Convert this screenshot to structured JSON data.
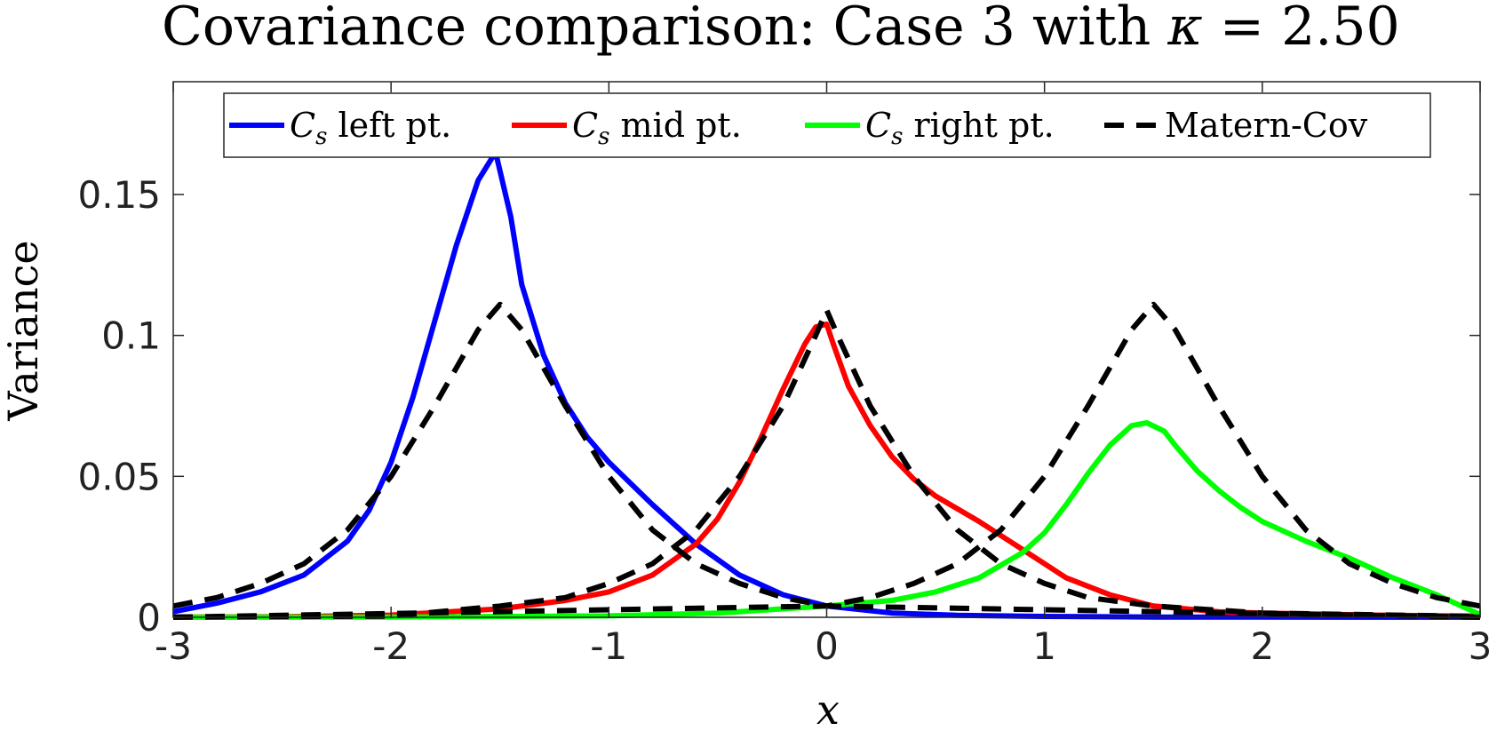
{
  "chart_data": {
    "type": "line",
    "title": "Covariance comparison: Case 3 with κ = 2.50",
    "title_parts": {
      "lead": "Covariance comparison: Case 3 with ",
      "symbol": "κ",
      "tail": " = 2.50"
    },
    "xlabel": "x",
    "ylabel": "Variance",
    "xlim": [
      -3,
      3
    ],
    "ylim": [
      0,
      0.19
    ],
    "xticks": [
      -3,
      -2,
      -1,
      0,
      1,
      2,
      3
    ],
    "xtick_labels": [
      "-3",
      "-2",
      "-1",
      "0",
      "1",
      "2",
      "3"
    ],
    "yticks": [
      0,
      0.05,
      0.1,
      0.15
    ],
    "ytick_labels": [
      "0",
      "0.05",
      "0.1",
      "0.15"
    ],
    "grid": false,
    "legend_position": "top",
    "legend": [
      {
        "symbol": "C",
        "subscript": "s",
        "text": " left pt.",
        "color": "#0000ff",
        "style": "solid"
      },
      {
        "symbol": "C",
        "subscript": "s",
        "text": " mid pt.",
        "color": "#ff0000",
        "style": "solid"
      },
      {
        "symbol": "C",
        "subscript": "s",
        "text": " right pt.",
        "color": "#00ff00",
        "style": "solid"
      },
      {
        "symbol": "",
        "subscript": "",
        "text": "Matern-Cov",
        "color": "#000000",
        "style": "dashed"
      }
    ],
    "series": [
      {
        "name": "Cs left pt.",
        "color": "#0000ff",
        "style": "solid",
        "points": [
          [
            -3,
            0.002
          ],
          [
            -2.8,
            0.005
          ],
          [
            -2.6,
            0.009
          ],
          [
            -2.4,
            0.015
          ],
          [
            -2.2,
            0.027
          ],
          [
            -2.1,
            0.038
          ],
          [
            -2.0,
            0.055
          ],
          [
            -1.9,
            0.078
          ],
          [
            -1.8,
            0.105
          ],
          [
            -1.7,
            0.132
          ],
          [
            -1.6,
            0.155
          ],
          [
            -1.52,
            0.165
          ],
          [
            -1.45,
            0.142
          ],
          [
            -1.4,
            0.118
          ],
          [
            -1.3,
            0.093
          ],
          [
            -1.2,
            0.076
          ],
          [
            -1.1,
            0.064
          ],
          [
            -1.0,
            0.055
          ],
          [
            -0.8,
            0.04
          ],
          [
            -0.6,
            0.026
          ],
          [
            -0.4,
            0.015
          ],
          [
            -0.2,
            0.008
          ],
          [
            0,
            0.004
          ],
          [
            0.3,
            0.0015
          ],
          [
            0.6,
            0.0007
          ],
          [
            1.0,
            0.0003
          ],
          [
            1.5,
            0.0001
          ],
          [
            2.0,
            5e-05
          ],
          [
            3,
            2e-05
          ]
        ]
      },
      {
        "name": "Cs mid pt.",
        "color": "#ff0000",
        "style": "solid",
        "points": [
          [
            -3,
            5e-05
          ],
          [
            -2.5,
            0.0002
          ],
          [
            -2.0,
            0.0008
          ],
          [
            -1.5,
            0.003
          ],
          [
            -1.2,
            0.006
          ],
          [
            -1.0,
            0.009
          ],
          [
            -0.8,
            0.015
          ],
          [
            -0.6,
            0.026
          ],
          [
            -0.5,
            0.035
          ],
          [
            -0.4,
            0.048
          ],
          [
            -0.3,
            0.064
          ],
          [
            -0.2,
            0.081
          ],
          [
            -0.1,
            0.097
          ],
          [
            -0.05,
            0.103
          ],
          [
            0,
            0.104
          ],
          [
            0.03,
            0.097
          ],
          [
            0.1,
            0.082
          ],
          [
            0.2,
            0.068
          ],
          [
            0.3,
            0.057
          ],
          [
            0.4,
            0.049
          ],
          [
            0.5,
            0.043
          ],
          [
            0.7,
            0.034
          ],
          [
            0.9,
            0.024
          ],
          [
            1.1,
            0.014
          ],
          [
            1.3,
            0.008
          ],
          [
            1.5,
            0.004
          ],
          [
            1.8,
            0.002
          ],
          [
            2.0,
            0.0015
          ],
          [
            2.5,
            0.0008
          ],
          [
            3,
            0.0004
          ]
        ]
      },
      {
        "name": "Cs right pt.",
        "color": "#00ff00",
        "style": "solid",
        "points": [
          [
            -3,
            2e-05
          ],
          [
            -2.0,
            0.0001
          ],
          [
            -1.0,
            0.0005
          ],
          [
            -0.5,
            0.0015
          ],
          [
            0,
            0.004
          ],
          [
            0.3,
            0.006
          ],
          [
            0.5,
            0.009
          ],
          [
            0.7,
            0.014
          ],
          [
            0.9,
            0.023
          ],
          [
            1.0,
            0.03
          ],
          [
            1.1,
            0.04
          ],
          [
            1.2,
            0.051
          ],
          [
            1.3,
            0.061
          ],
          [
            1.4,
            0.068
          ],
          [
            1.47,
            0.069
          ],
          [
            1.55,
            0.066
          ],
          [
            1.6,
            0.061
          ],
          [
            1.7,
            0.052
          ],
          [
            1.8,
            0.045
          ],
          [
            1.9,
            0.039
          ],
          [
            2.0,
            0.034
          ],
          [
            2.2,
            0.027
          ],
          [
            2.4,
            0.021
          ],
          [
            2.6,
            0.014
          ],
          [
            2.8,
            0.008
          ],
          [
            3,
            0.001
          ]
        ]
      },
      {
        "name": "Matern-Cov",
        "color": "#000000",
        "style": "dashed",
        "points": [
          [
            -3,
            0.004
          ],
          [
            -2.8,
            0.007
          ],
          [
            -2.6,
            0.012
          ],
          [
            -2.4,
            0.019
          ],
          [
            -2.2,
            0.031
          ],
          [
            -2.0,
            0.05
          ],
          [
            -1.8,
            0.075
          ],
          [
            -1.6,
            0.102
          ],
          [
            -1.5,
            0.111
          ],
          [
            -1.4,
            0.102
          ],
          [
            -1.2,
            0.075
          ],
          [
            -1.0,
            0.05
          ],
          [
            -0.8,
            0.031
          ],
          [
            -0.6,
            0.019
          ],
          [
            -0.4,
            0.012
          ],
          [
            -0.2,
            0.007
          ],
          [
            0,
            0.004
          ],
          [
            3,
            2e-05
          ]
        ]
      },
      {
        "name": "Matern-Cov",
        "color": "#000000",
        "style": "dashed",
        "points": [
          [
            -3,
            5e-05
          ],
          [
            -2.0,
            0.0004
          ],
          [
            -1.5,
            0.004
          ],
          [
            -1.2,
            0.007
          ],
          [
            -1.0,
            0.012
          ],
          [
            -0.8,
            0.019
          ],
          [
            -0.6,
            0.031
          ],
          [
            -0.4,
            0.05
          ],
          [
            -0.2,
            0.075
          ],
          [
            -0.05,
            0.1
          ],
          [
            0,
            0.109
          ],
          [
            0.05,
            0.1
          ],
          [
            0.2,
            0.075
          ],
          [
            0.4,
            0.05
          ],
          [
            0.6,
            0.031
          ],
          [
            0.8,
            0.019
          ],
          [
            1.0,
            0.012
          ],
          [
            1.2,
            0.007
          ],
          [
            1.5,
            0.004
          ],
          [
            2.0,
            0.0015
          ],
          [
            3,
            0.0003
          ]
        ]
      },
      {
        "name": "Matern-Cov",
        "color": "#000000",
        "style": "dashed",
        "points": [
          [
            -3,
            2e-05
          ],
          [
            0,
            0.004
          ],
          [
            0.2,
            0.007
          ],
          [
            0.4,
            0.012
          ],
          [
            0.6,
            0.019
          ],
          [
            0.8,
            0.031
          ],
          [
            1.0,
            0.05
          ],
          [
            1.2,
            0.075
          ],
          [
            1.4,
            0.102
          ],
          [
            1.5,
            0.111
          ],
          [
            1.6,
            0.102
          ],
          [
            1.8,
            0.075
          ],
          [
            2.0,
            0.05
          ],
          [
            2.2,
            0.031
          ],
          [
            2.4,
            0.019
          ],
          [
            2.6,
            0.012
          ],
          [
            2.8,
            0.007
          ],
          [
            3,
            0.004
          ]
        ]
      }
    ]
  }
}
